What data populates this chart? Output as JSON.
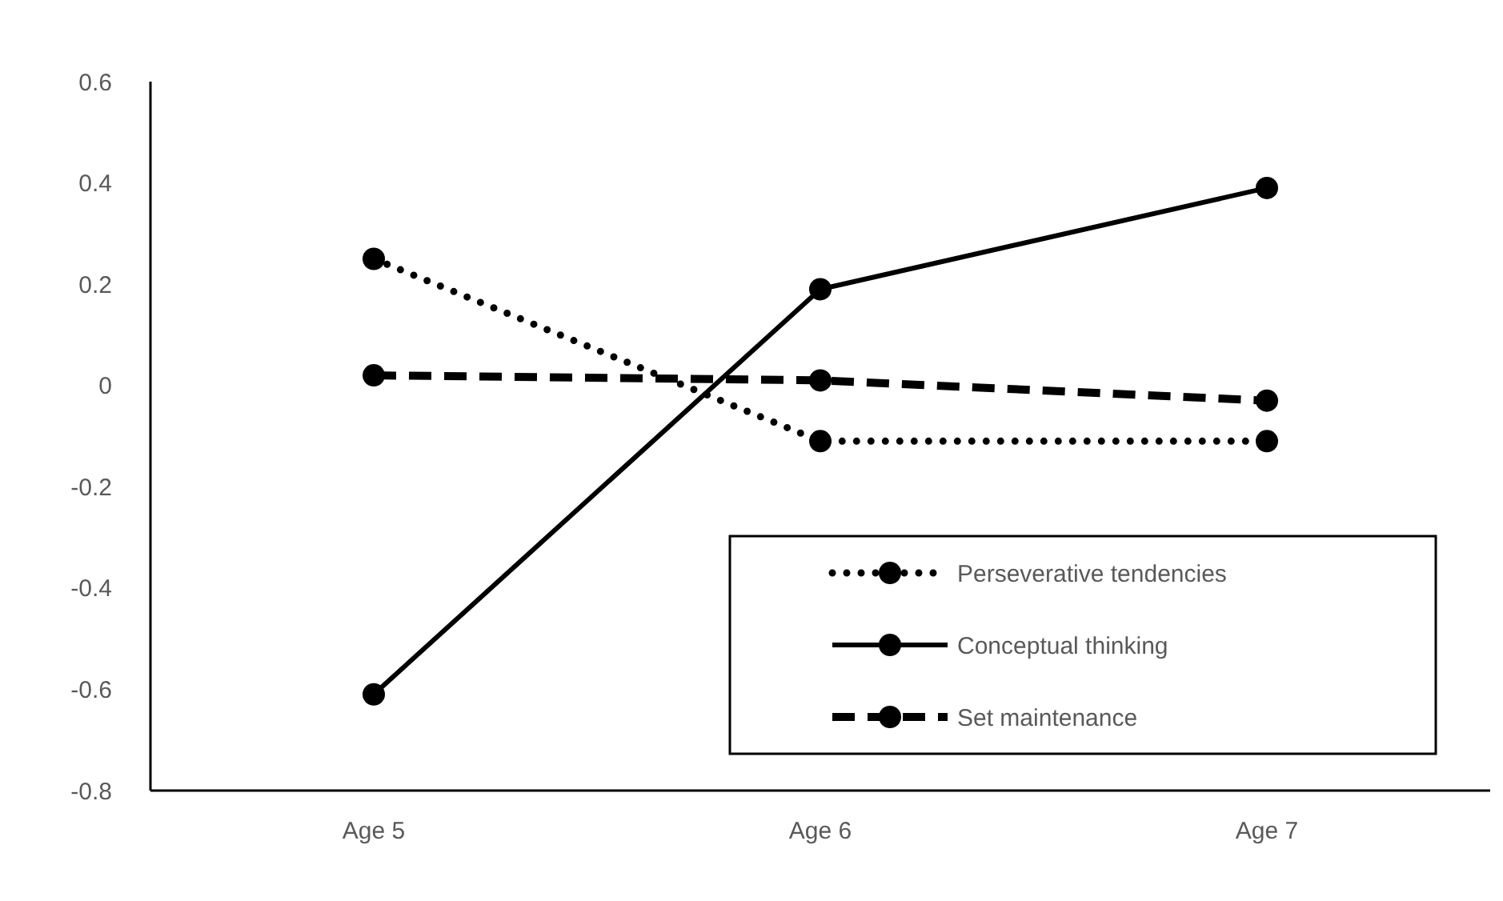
{
  "chart_data": {
    "type": "line",
    "categories": [
      "Age 5",
      "Age 6",
      "Age 7"
    ],
    "series": [
      {
        "name": "Perseverative tendencies",
        "color": "#000000",
        "values": [
          0.25,
          -0.11,
          -0.11
        ],
        "line_style": "dotted"
      },
      {
        "name": "Conceptual thinking",
        "color": "#000000",
        "values": [
          -0.61,
          0.19,
          0.39
        ],
        "line_style": "solid"
      },
      {
        "name": "Set maintenance",
        "color": "#000000",
        "values": [
          0.02,
          0.01,
          -0.03
        ],
        "line_style": "dashed"
      }
    ],
    "ylim": [
      -0.8,
      0.6
    ],
    "yticks": [
      -0.8,
      -0.6,
      -0.4,
      -0.2,
      0,
      0.2,
      0.4,
      0.6
    ],
    "grid": false,
    "legend": "bottom right",
    "marker": "circle"
  }
}
